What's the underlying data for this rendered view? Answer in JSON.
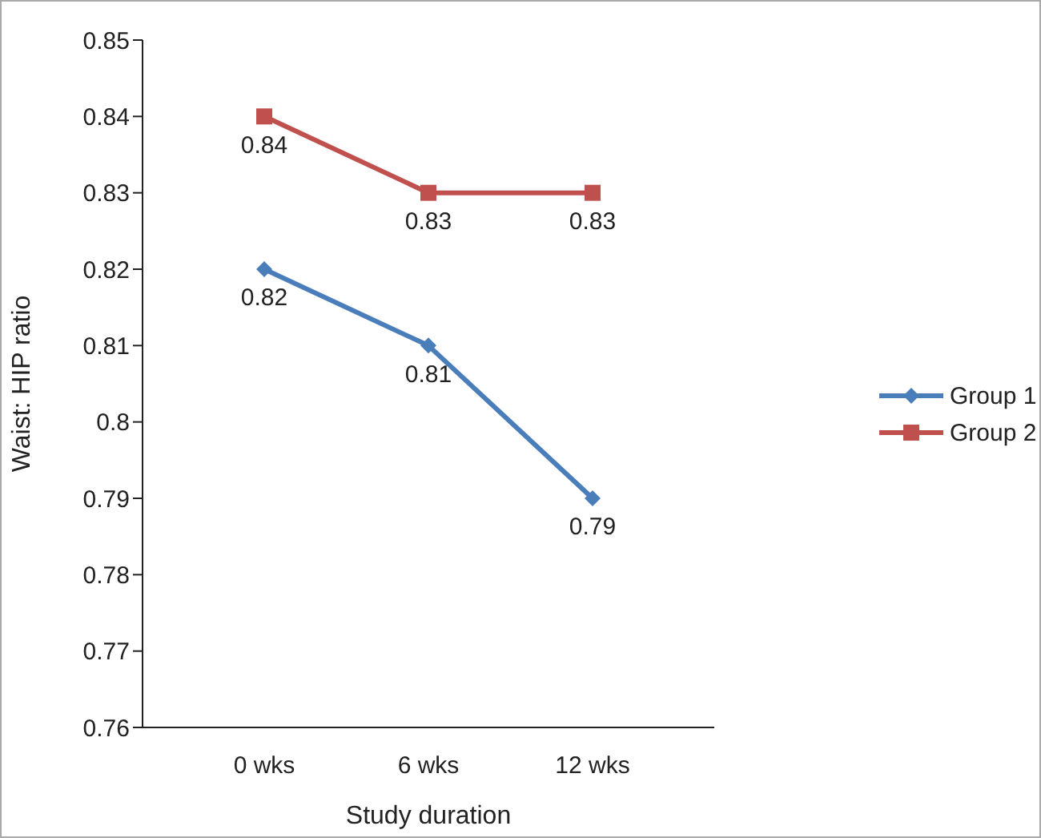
{
  "chart_data": {
    "type": "line",
    "xlabel": "Study duration",
    "ylabel": "Waist: HIP ratio",
    "categories": [
      "0 wks",
      "6 wks",
      "12 wks"
    ],
    "series": [
      {
        "name": "Group 1",
        "color": "#4a7ebb",
        "values": [
          0.82,
          0.81,
          0.79
        ],
        "marker": "diamond"
      },
      {
        "name": "Group 2",
        "color": "#c0504d",
        "values": [
          0.84,
          0.83,
          0.83
        ],
        "marker": "square"
      }
    ],
    "ylim": [
      0.76,
      0.85
    ],
    "yticks": [
      0.76,
      0.77,
      0.78,
      0.79,
      0.8,
      0.81,
      0.82,
      0.83,
      0.84,
      0.85
    ],
    "grid": false,
    "legend": "right",
    "data_labels": true
  }
}
